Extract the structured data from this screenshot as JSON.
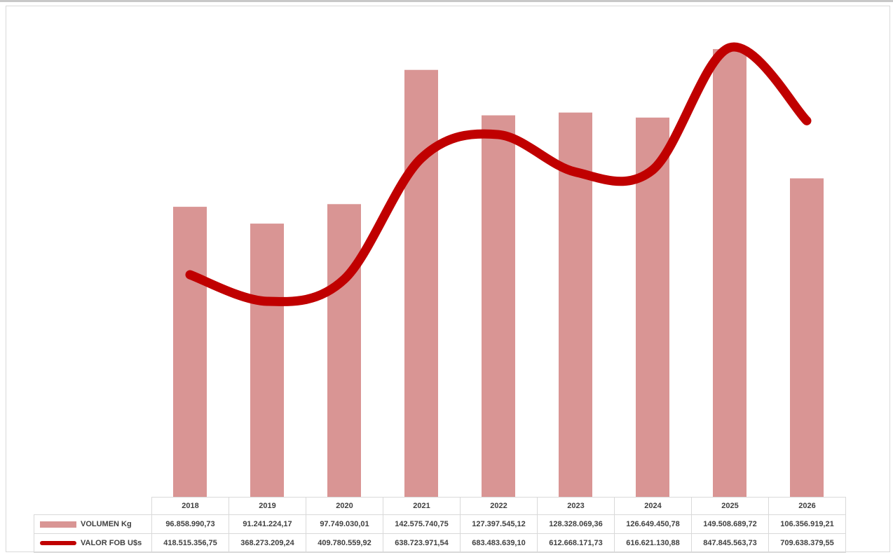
{
  "chart_data": {
    "type": "bar",
    "title": "",
    "xlabel": "",
    "ylabel": "",
    "categories": [
      "2018",
      "2019",
      "2020",
      "2021",
      "2022",
      "2023",
      "2024",
      "2025",
      "2026"
    ],
    "series": [
      {
        "name": "VOLUMEN Kg",
        "type": "bar",
        "color": "#d99594",
        "values": [
          96858990.73,
          91241224.17,
          97749030.01,
          142575740.75,
          127397545.12,
          128328069.36,
          126649450.78,
          149508689.72,
          106356919.21
        ],
        "labels": [
          "96.858.990,73",
          "91.241.224,17",
          "97.749.030,01",
          "142.575.740,75",
          "127.397.545,12",
          "128.328.069,36",
          "126.649.450,78",
          "149.508.689,72",
          "106.356.919,21"
        ]
      },
      {
        "name": "VALOR FOB U$s",
        "type": "line",
        "smooth": true,
        "color": "#c00000",
        "values": [
          418515356.75,
          368273209.24,
          409780559.92,
          638723971.54,
          683483639.1,
          612668171.73,
          616621130.88,
          847845563.73,
          709638379.55
        ],
        "labels": [
          "418.515.356,75",
          "368.273.209,24",
          "409.780.559,92",
          "638.723.971,54",
          "683.483.639,10",
          "612.668.171,73",
          "616.621.130,88",
          "847.845.563,73",
          "709.638.379,55"
        ]
      }
    ],
    "ylim_bar": [
      0,
      150000000
    ],
    "ylim_line": [
      0,
      900000000
    ],
    "grid": false,
    "legend": "data-table-below"
  }
}
